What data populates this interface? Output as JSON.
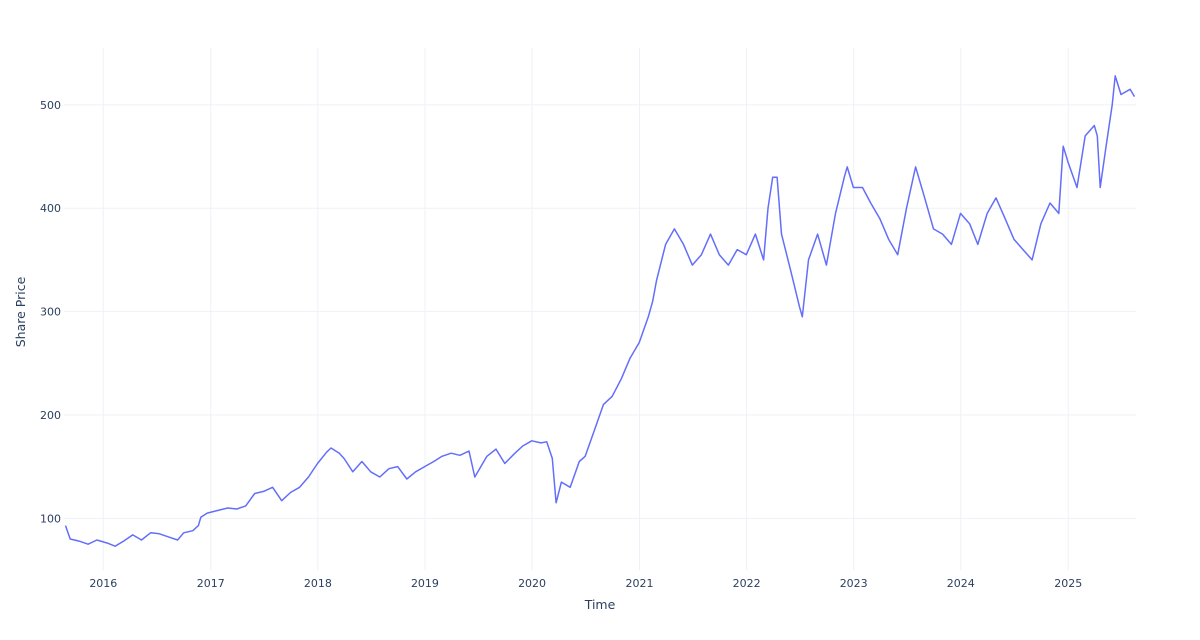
{
  "chart_data": {
    "type": "line",
    "title": "",
    "xlabel": "Time",
    "ylabel": "Share Price",
    "grid": true,
    "legend": "none",
    "line_color": "#636efa",
    "xlim": [
      "2015-08-20",
      "2025-08-20"
    ],
    "ylim": [
      50,
      555
    ],
    "x_ticks": [
      {
        "date": "2016-01-01",
        "label": "2016"
      },
      {
        "date": "2017-01-01",
        "label": "2017"
      },
      {
        "date": "2018-01-01",
        "label": "2018"
      },
      {
        "date": "2019-01-01",
        "label": "2019"
      },
      {
        "date": "2020-01-01",
        "label": "2020"
      },
      {
        "date": "2021-01-01",
        "label": "2021"
      },
      {
        "date": "2022-01-01",
        "label": "2022"
      },
      {
        "date": "2023-01-01",
        "label": "2023"
      },
      {
        "date": "2024-01-01",
        "label": "2024"
      },
      {
        "date": "2025-01-01",
        "label": "2025"
      }
    ],
    "y_ticks": [
      {
        "value": 100,
        "label": "100"
      },
      {
        "value": 200,
        "label": "200"
      },
      {
        "value": 300,
        "label": "300"
      },
      {
        "value": 400,
        "label": "400"
      },
      {
        "value": 500,
        "label": "500"
      }
    ],
    "series": [
      {
        "points": [
          [
            "2015-08-25",
            93
          ],
          [
            "2015-09-10",
            80
          ],
          [
            "2015-10-10",
            78
          ],
          [
            "2015-11-10",
            75
          ],
          [
            "2015-12-10",
            79
          ],
          [
            "2016-01-15",
            76
          ],
          [
            "2016-02-10",
            73
          ],
          [
            "2016-03-10",
            78
          ],
          [
            "2016-04-10",
            84
          ],
          [
            "2016-05-10",
            79
          ],
          [
            "2016-06-10",
            86
          ],
          [
            "2016-07-10",
            85
          ],
          [
            "2016-08-10",
            82
          ],
          [
            "2016-09-10",
            79
          ],
          [
            "2016-10-01",
            86
          ],
          [
            "2016-11-01",
            88
          ],
          [
            "2016-11-20",
            93
          ],
          [
            "2016-11-28",
            101
          ],
          [
            "2016-12-20",
            105
          ],
          [
            "2017-01-31",
            108
          ],
          [
            "2017-02-28",
            110
          ],
          [
            "2017-03-31",
            109
          ],
          [
            "2017-04-30",
            112
          ],
          [
            "2017-05-31",
            124
          ],
          [
            "2017-06-30",
            126
          ],
          [
            "2017-07-31",
            130
          ],
          [
            "2017-08-31",
            117
          ],
          [
            "2017-09-30",
            125
          ],
          [
            "2017-10-31",
            130
          ],
          [
            "2017-11-30",
            140
          ],
          [
            "2017-12-31",
            153
          ],
          [
            "2018-01-31",
            164
          ],
          [
            "2018-02-15",
            168
          ],
          [
            "2018-03-15",
            163
          ],
          [
            "2018-03-31",
            158
          ],
          [
            "2018-04-30",
            145
          ],
          [
            "2018-05-31",
            155
          ],
          [
            "2018-06-30",
            145
          ],
          [
            "2018-07-31",
            140
          ],
          [
            "2018-08-31",
            148
          ],
          [
            "2018-09-30",
            150
          ],
          [
            "2018-10-31",
            138
          ],
          [
            "2018-11-30",
            145
          ],
          [
            "2018-12-31",
            150
          ],
          [
            "2019-01-31",
            155
          ],
          [
            "2019-02-28",
            160
          ],
          [
            "2019-03-31",
            163
          ],
          [
            "2019-04-30",
            161
          ],
          [
            "2019-05-31",
            165
          ],
          [
            "2019-06-20",
            140
          ],
          [
            "2019-07-31",
            160
          ],
          [
            "2019-08-31",
            167
          ],
          [
            "2019-09-30",
            153
          ],
          [
            "2019-10-31",
            162
          ],
          [
            "2019-11-30",
            170
          ],
          [
            "2019-12-31",
            175
          ],
          [
            "2020-01-31",
            173
          ],
          [
            "2020-02-20",
            174
          ],
          [
            "2020-03-10",
            158
          ],
          [
            "2020-03-23",
            115
          ],
          [
            "2020-04-10",
            135
          ],
          [
            "2020-05-10",
            130
          ],
          [
            "2020-06-10",
            155
          ],
          [
            "2020-06-30",
            160
          ],
          [
            "2020-07-31",
            185
          ],
          [
            "2020-08-31",
            210
          ],
          [
            "2020-09-30",
            218
          ],
          [
            "2020-10-31",
            235
          ],
          [
            "2020-11-30",
            255
          ],
          [
            "2020-12-31",
            270
          ],
          [
            "2021-01-31",
            295
          ],
          [
            "2021-02-15",
            310
          ],
          [
            "2021-02-28",
            330
          ],
          [
            "2021-03-31",
            365
          ],
          [
            "2021-04-30",
            380
          ],
          [
            "2021-05-31",
            365
          ],
          [
            "2021-06-30",
            345
          ],
          [
            "2021-07-31",
            355
          ],
          [
            "2021-08-31",
            375
          ],
          [
            "2021-09-30",
            355
          ],
          [
            "2021-10-31",
            345
          ],
          [
            "2021-11-30",
            360
          ],
          [
            "2021-12-31",
            355
          ],
          [
            "2022-01-31",
            375
          ],
          [
            "2022-02-28",
            350
          ],
          [
            "2022-03-15",
            400
          ],
          [
            "2022-03-31",
            430
          ],
          [
            "2022-04-15",
            430
          ],
          [
            "2022-04-30",
            375
          ],
          [
            "2022-05-31",
            340
          ],
          [
            "2022-06-30",
            305
          ],
          [
            "2022-07-10",
            295
          ],
          [
            "2022-07-31",
            350
          ],
          [
            "2022-08-31",
            375
          ],
          [
            "2022-09-30",
            345
          ],
          [
            "2022-10-31",
            395
          ],
          [
            "2022-11-30",
            430
          ],
          [
            "2022-12-10",
            440
          ],
          [
            "2022-12-31",
            420
          ],
          [
            "2023-01-31",
            420
          ],
          [
            "2023-02-28",
            405
          ],
          [
            "2023-03-31",
            390
          ],
          [
            "2023-04-30",
            370
          ],
          [
            "2023-05-31",
            355
          ],
          [
            "2023-06-30",
            400
          ],
          [
            "2023-07-31",
            440
          ],
          [
            "2023-08-31",
            410
          ],
          [
            "2023-09-30",
            380
          ],
          [
            "2023-10-31",
            375
          ],
          [
            "2023-11-30",
            365
          ],
          [
            "2023-12-31",
            395
          ],
          [
            "2024-01-31",
            385
          ],
          [
            "2024-02-28",
            365
          ],
          [
            "2024-03-31",
            395
          ],
          [
            "2024-04-30",
            410
          ],
          [
            "2024-05-31",
            390
          ],
          [
            "2024-06-30",
            370
          ],
          [
            "2024-07-31",
            360
          ],
          [
            "2024-08-31",
            350
          ],
          [
            "2024-09-30",
            385
          ],
          [
            "2024-10-31",
            405
          ],
          [
            "2024-11-30",
            395
          ],
          [
            "2024-12-15",
            460
          ],
          [
            "2024-12-31",
            445
          ],
          [
            "2025-01-31",
            420
          ],
          [
            "2025-02-28",
            470
          ],
          [
            "2025-03-31",
            480
          ],
          [
            "2025-04-10",
            470
          ],
          [
            "2025-04-20",
            420
          ],
          [
            "2025-05-10",
            460
          ],
          [
            "2025-05-31",
            500
          ],
          [
            "2025-06-10",
            528
          ],
          [
            "2025-06-30",
            510
          ],
          [
            "2025-07-31",
            515
          ],
          [
            "2025-08-15",
            508
          ]
        ]
      }
    ]
  }
}
